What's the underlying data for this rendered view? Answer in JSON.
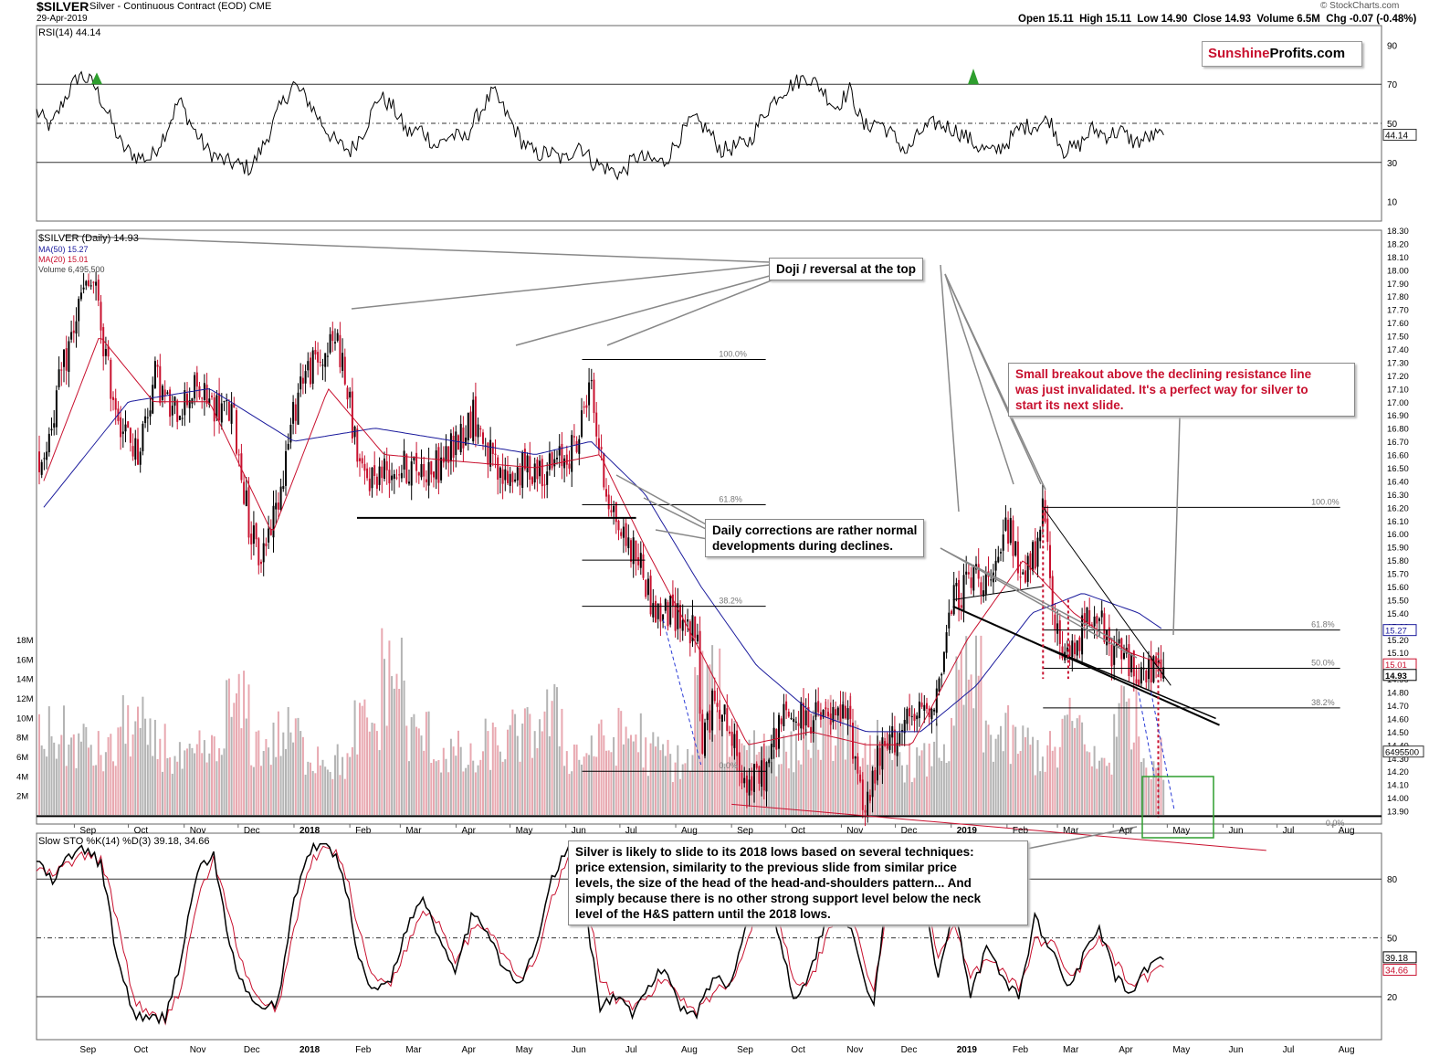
{
  "header": {
    "symbol": "$SILVER",
    "name": "Silver - Continuous Contract (EOD)",
    "exchange": "CME",
    "date": "29-Apr-2019",
    "source": "© StockCharts.com",
    "ohlc": "Open 15.11  High 15.11  Low 14.90  Close 14.93  Volume 6.5M  Chg -0.07 (-0.48%)"
  },
  "logo": {
    "part1": "Sunshine",
    "part2": "Profits.com"
  },
  "legend": {
    "rsi": "RSI(14) 44.14",
    "price": "$SILVER (Daily) 14.93",
    "ma50": "MA(50) 15.27",
    "ma20": "MA(20) 15.01",
    "volume": "Volume 6,495,500",
    "sto": "Slow STO %K(14) %D(3) 39.18, 34.66"
  },
  "annotations": {
    "doji": "Doji / reversal at the top",
    "daily": [
      "Daily corrections are rather normal",
      "developments during declines."
    ],
    "breakout": [
      "Small breakout above the declining resistance line",
      "was just invalidated. It's a perfect way for silver to",
      "start its next slide."
    ],
    "target": [
      "Silver is likely to slide to its 2018 lows based on several techniques:",
      "price extension, similarity to the previous slide from similar price",
      "levels, the size of the head of the head-and-shoulders pattern... And",
      "simply because there is no other strong support level below the neck",
      "level of the H&S pattern until the 2018 lows."
    ]
  },
  "colors": {
    "up": "#000000",
    "down": "#c8102e",
    "ma50": "#1a1a9c",
    "ma20": "#c8102e",
    "volUp": "#b4b4b4",
    "volDown": "#e8a8b0",
    "green": "#2e9e2e",
    "fib": "#000000"
  },
  "chart_data": [
    {
      "type": "line",
      "title": "RSI(14) 44.14",
      "ylim": [
        0,
        100
      ],
      "yticks": [
        10,
        30,
        50,
        70,
        90
      ],
      "reference_lines": [
        30,
        50,
        70
      ],
      "last_value_label": "44.14",
      "months": [
        "Sep",
        "Oct",
        "Nov",
        "Dec",
        "2018",
        "Feb",
        "Mar",
        "Apr",
        "May",
        "Jun",
        "Jul",
        "Aug",
        "Sep",
        "Oct",
        "Nov",
        "Dec",
        "2019",
        "Feb",
        "Mar",
        "Apr",
        "May",
        "Jun",
        "Jul",
        "Aug"
      ],
      "series": [
        {
          "name": "RSI(14)",
          "values": [
            56,
            48,
            63,
            75,
            70,
            55,
            38,
            33,
            32,
            45,
            62,
            47,
            36,
            31,
            29,
            27,
            40,
            57,
            70,
            62,
            50,
            40,
            36,
            47,
            64,
            58,
            45,
            47,
            38,
            44,
            42,
            55,
            66,
            54,
            41,
            34,
            35,
            31,
            40,
            30,
            27,
            24,
            33,
            31,
            30,
            42,
            52,
            47,
            36,
            38,
            41,
            55,
            65,
            70,
            74,
            68,
            58,
            67,
            48,
            51,
            44,
            35,
            46,
            50,
            48,
            44,
            38,
            35,
            40,
            48,
            49,
            52,
            36,
            38,
            47,
            44,
            46,
            40,
            43,
            44
          ]
        }
      ]
    },
    {
      "type": "candlestick",
      "title": "$SILVER (Daily) 14.93",
      "ylim": [
        13.8,
        18.3
      ],
      "yticks": [
        13.9,
        14.0,
        14.1,
        14.2,
        14.3,
        14.4,
        14.5,
        14.6,
        14.7,
        14.8,
        14.9,
        15.0,
        15.1,
        15.2,
        15.3,
        15.4,
        15.5,
        15.6,
        15.7,
        15.8,
        15.9,
        16.0,
        16.1,
        16.2,
        16.3,
        16.4,
        16.5,
        16.6,
        16.7,
        16.8,
        16.9,
        17.0,
        17.1,
        17.2,
        17.3,
        17.4,
        17.5,
        17.6,
        17.7,
        17.8,
        17.9,
        18.0,
        18.1,
        18.2,
        18.3
      ],
      "last_value_labels": [
        "15.27",
        "15.01",
        "14.93"
      ],
      "fib_labels": [
        "100.0%",
        "61.8%",
        "38.2%",
        "0.0%",
        "100.0%",
        "61.8%",
        "50.0%",
        "38.2%",
        "0.0%"
      ],
      "close_anchors": [
        {
          "x": "2017-08-15",
          "y": 16.6
        },
        {
          "x": "2017-08-25",
          "y": 17.2
        },
        {
          "x": "2017-09-05",
          "y": 17.8
        },
        {
          "x": "2017-09-12",
          "y": 17.9
        },
        {
          "x": "2017-09-20",
          "y": 17.2
        },
        {
          "x": "2017-09-28",
          "y": 16.8
        },
        {
          "x": "2017-10-06",
          "y": 16.6
        },
        {
          "x": "2017-10-16",
          "y": 17.2
        },
        {
          "x": "2017-10-25",
          "y": 16.9
        },
        {
          "x": "2017-11-06",
          "y": 17.1
        },
        {
          "x": "2017-11-15",
          "y": 17.0
        },
        {
          "x": "2017-11-28",
          "y": 16.9
        },
        {
          "x": "2017-12-08",
          "y": 16.0
        },
        {
          "x": "2017-12-13",
          "y": 15.8
        },
        {
          "x": "2017-12-22",
          "y": 16.2
        },
        {
          "x": "2018-01-05",
          "y": 17.2
        },
        {
          "x": "2018-01-15",
          "y": 17.3
        },
        {
          "x": "2018-01-25",
          "y": 17.5
        },
        {
          "x": "2018-02-08",
          "y": 16.4
        },
        {
          "x": "2018-02-22",
          "y": 16.5
        },
        {
          "x": "2018-03-08",
          "y": 16.5
        },
        {
          "x": "2018-03-22",
          "y": 16.5
        },
        {
          "x": "2018-04-11",
          "y": 16.9
        },
        {
          "x": "2018-04-25",
          "y": 16.4
        },
        {
          "x": "2018-05-10",
          "y": 16.5
        },
        {
          "x": "2018-05-25",
          "y": 16.5
        },
        {
          "x": "2018-06-08",
          "y": 16.7
        },
        {
          "x": "2018-06-14",
          "y": 17.2
        },
        {
          "x": "2018-06-22",
          "y": 16.4
        },
        {
          "x": "2018-07-02",
          "y": 16.0
        },
        {
          "x": "2018-07-12",
          "y": 15.8
        },
        {
          "x": "2018-07-20",
          "y": 15.4
        },
        {
          "x": "2018-08-03",
          "y": 15.4
        },
        {
          "x": "2018-08-13",
          "y": 15.2
        },
        {
          "x": "2018-08-15",
          "y": 14.4
        },
        {
          "x": "2018-08-24",
          "y": 14.8
        },
        {
          "x": "2018-09-04",
          "y": 14.3
        },
        {
          "x": "2018-09-11",
          "y": 14.1
        },
        {
          "x": "2018-09-20",
          "y": 14.2
        },
        {
          "x": "2018-09-28",
          "y": 14.6
        },
        {
          "x": "2018-10-08",
          "y": 14.6
        },
        {
          "x": "2018-10-26",
          "y": 14.6
        },
        {
          "x": "2018-11-05",
          "y": 14.6
        },
        {
          "x": "2018-11-13",
          "y": 14.0
        },
        {
          "x": "2018-11-14",
          "y": 13.9
        },
        {
          "x": "2018-11-22",
          "y": 14.3
        },
        {
          "x": "2018-12-03",
          "y": 14.5
        },
        {
          "x": "2018-12-13",
          "y": 14.6
        },
        {
          "x": "2018-12-24",
          "y": 14.8
        },
        {
          "x": "2019-01-02",
          "y": 15.5
        },
        {
          "x": "2019-01-15",
          "y": 15.7
        },
        {
          "x": "2019-01-25",
          "y": 15.6
        },
        {
          "x": "2019-02-01",
          "y": 16.1
        },
        {
          "x": "2019-02-08",
          "y": 15.7
        },
        {
          "x": "2019-02-20",
          "y": 15.9
        },
        {
          "x": "2019-02-21",
          "y": 16.2
        },
        {
          "x": "2019-03-01",
          "y": 15.2
        },
        {
          "x": "2019-03-07",
          "y": 15.0
        },
        {
          "x": "2019-03-15",
          "y": 15.3
        },
        {
          "x": "2019-03-22",
          "y": 15.5
        },
        {
          "x": "2019-03-29",
          "y": 15.1
        },
        {
          "x": "2019-04-05",
          "y": 15.1
        },
        {
          "x": "2019-04-12",
          "y": 15.0
        },
        {
          "x": "2019-04-18",
          "y": 14.9
        },
        {
          "x": "2019-04-24",
          "y": 15.0
        },
        {
          "x": "2019-04-29",
          "y": 14.93
        }
      ],
      "series": [
        {
          "name": "MA(50) 15.27",
          "anchors": [
            {
              "x": "2017-08-15",
              "y": 16.2
            },
            {
              "x": "2017-10-01",
              "y": 17.0
            },
            {
              "x": "2017-11-15",
              "y": 17.1
            },
            {
              "x": "2018-01-01",
              "y": 16.7
            },
            {
              "x": "2018-02-15",
              "y": 16.8
            },
            {
              "x": "2018-04-01",
              "y": 16.7
            },
            {
              "x": "2018-05-15",
              "y": 16.6
            },
            {
              "x": "2018-06-15",
              "y": 16.7
            },
            {
              "x": "2018-07-15",
              "y": 16.3
            },
            {
              "x": "2018-08-15",
              "y": 15.6
            },
            {
              "x": "2018-09-15",
              "y": 15.0
            },
            {
              "x": "2018-10-15",
              "y": 14.65
            },
            {
              "x": "2018-11-15",
              "y": 14.5
            },
            {
              "x": "2018-12-15",
              "y": 14.5
            },
            {
              "x": "2019-01-15",
              "y": 14.85
            },
            {
              "x": "2019-02-15",
              "y": 15.4
            },
            {
              "x": "2019-03-15",
              "y": 15.55
            },
            {
              "x": "2019-04-15",
              "y": 15.4
            },
            {
              "x": "2019-04-29",
              "y": 15.27
            }
          ]
        },
        {
          "name": "MA(20) 15.01",
          "anchors": [
            {
              "x": "2017-08-15",
              "y": 16.4
            },
            {
              "x": "2017-09-15",
              "y": 17.5
            },
            {
              "x": "2017-10-15",
              "y": 17.0
            },
            {
              "x": "2017-11-15",
              "y": 17.0
            },
            {
              "x": "2017-12-20",
              "y": 16.0
            },
            {
              "x": "2018-01-20",
              "y": 17.1
            },
            {
              "x": "2018-02-20",
              "y": 16.6
            },
            {
              "x": "2018-04-01",
              "y": 16.55
            },
            {
              "x": "2018-05-15",
              "y": 16.5
            },
            {
              "x": "2018-06-20",
              "y": 16.6
            },
            {
              "x": "2018-07-15",
              "y": 15.9
            },
            {
              "x": "2018-08-15",
              "y": 15.1
            },
            {
              "x": "2018-09-10",
              "y": 14.4
            },
            {
              "x": "2018-10-15",
              "y": 14.5
            },
            {
              "x": "2018-11-15",
              "y": 14.4
            },
            {
              "x": "2018-12-10",
              "y": 14.4
            },
            {
              "x": "2019-01-10",
              "y": 15.2
            },
            {
              "x": "2019-02-10",
              "y": 15.8
            },
            {
              "x": "2019-03-10",
              "y": 15.4
            },
            {
              "x": "2019-04-10",
              "y": 15.1
            },
            {
              "x": "2019-04-29",
              "y": 15.01
            }
          ]
        }
      ]
    },
    {
      "type": "bar",
      "title": "Volume 6,495,500",
      "ylim": [
        0,
        18000000
      ],
      "yticks": [
        "2M",
        "4M",
        "6M",
        "8M",
        "10M",
        "12M",
        "14M",
        "16M",
        "18M"
      ],
      "last_value_label": "6495500",
      "values_typical_millions": [
        9,
        8,
        7,
        10,
        8,
        6,
        7,
        12,
        8,
        9,
        7,
        6,
        10,
        16,
        9,
        7,
        6,
        8,
        9,
        11,
        7,
        8,
        9,
        7,
        6,
        14,
        9,
        8,
        7,
        9,
        10,
        8,
        7,
        6,
        8,
        15,
        9,
        8,
        7,
        10,
        6,
        12,
        6.5
      ]
    },
    {
      "type": "line",
      "title": "Slow STO %K(14) %D(3) 39.18, 34.66",
      "ylim": [
        0,
        100
      ],
      "yticks": [
        20,
        50,
        80
      ],
      "reference_lines": [
        20,
        50,
        80
      ],
      "last_value_labels": [
        "39.18",
        "34.66"
      ],
      "series": [
        {
          "name": "%K",
          "values": [
            90,
            78,
            92,
            95,
            88,
            40,
            12,
            8,
            10,
            40,
            85,
            92,
            45,
            22,
            12,
            18,
            70,
            95,
            98,
            85,
            40,
            22,
            30,
            55,
            72,
            50,
            35,
            60,
            55,
            35,
            25,
            45,
            80,
            95,
            70,
            15,
            20,
            10,
            25,
            35,
            15,
            12,
            30,
            25,
            55,
            80,
            55,
            20,
            30,
            60,
            70,
            40,
            15,
            90,
            98,
            75,
            30,
            65,
            20,
            45,
            30,
            20,
            60,
            45,
            25,
            40,
            55,
            30,
            20,
            35,
            39
          ]
        },
        {
          "name": "%D",
          "values": [
            85,
            82,
            88,
            92,
            90,
            60,
            20,
            10,
            9,
            25,
            70,
            90,
            60,
            30,
            15,
            15,
            55,
            88,
            96,
            90,
            55,
            28,
            28,
            45,
            65,
            58,
            40,
            52,
            57,
            42,
            28,
            38,
            70,
            90,
            80,
            30,
            18,
            14,
            20,
            30,
            20,
            13,
            22,
            26,
            45,
            72,
            62,
            30,
            26,
            50,
            66,
            50,
            22,
            75,
            94,
            82,
            40,
            55,
            30,
            38,
            34,
            24,
            48,
            50,
            32,
            36,
            50,
            38,
            24,
            30,
            35
          ]
        }
      ]
    }
  ]
}
